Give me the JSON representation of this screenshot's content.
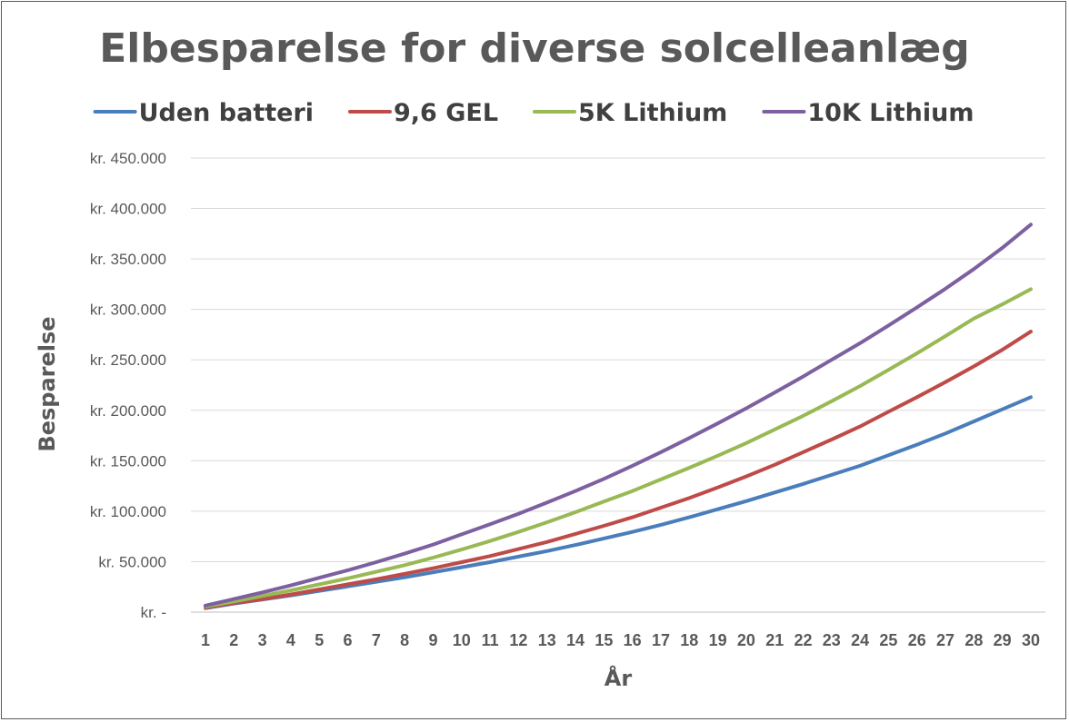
{
  "chart_data": {
    "type": "line",
    "title": "Elbesparelse for diverse solcelleanlæg",
    "xlabel": "År",
    "ylabel": "Besparelse",
    "x": [
      1,
      2,
      3,
      4,
      5,
      6,
      7,
      8,
      9,
      10,
      11,
      12,
      13,
      14,
      15,
      16,
      17,
      18,
      19,
      20,
      21,
      22,
      23,
      24,
      25,
      26,
      27,
      28,
      29,
      30
    ],
    "ylim": [
      0,
      450000
    ],
    "y_ticks": [
      0,
      50000,
      100000,
      150000,
      200000,
      250000,
      300000,
      350000,
      400000,
      450000
    ],
    "y_tick_labels": [
      "kr. -",
      "kr. 50.000",
      "kr. 100.000",
      "kr. 150.000",
      "kr. 200.000",
      "kr. 250.000",
      "kr. 300.000",
      "kr. 350.000",
      "kr. 400.000",
      "kr. 450.000"
    ],
    "grid": true,
    "legend_position": "top",
    "series": [
      {
        "name": "Uden batteri",
        "color": "#4a7ebb",
        "values": [
          4000,
          8500,
          12500,
          16500,
          21000,
          25500,
          30000,
          34500,
          39500,
          44500,
          49500,
          55000,
          60500,
          66500,
          73000,
          79500,
          86500,
          94000,
          102000,
          110000,
          118500,
          127000,
          136000,
          145000,
          155500,
          166000,
          177000,
          189000,
          201000,
          213000
        ]
      },
      {
        "name": "9,6 GEL",
        "color": "#be4b48",
        "values": [
          4500,
          9000,
          13000,
          17500,
          22500,
          27500,
          32500,
          38000,
          43500,
          49500,
          55500,
          62500,
          69500,
          77500,
          85500,
          94000,
          103500,
          113000,
          123500,
          134500,
          146000,
          158500,
          171000,
          184000,
          198500,
          213000,
          228000,
          243500,
          260000,
          278000
        ]
      },
      {
        "name": "5K Lithium",
        "color": "#98b954",
        "values": [
          5500,
          10500,
          16000,
          21500,
          27500,
          33500,
          40000,
          46500,
          54000,
          62000,
          70500,
          79500,
          89000,
          99000,
          109500,
          120000,
          131500,
          143000,
          155000,
          167500,
          181000,
          194500,
          209000,
          224000,
          240000,
          256500,
          273500,
          291000,
          305000,
          320000
        ]
      },
      {
        "name": "10K Lithium",
        "color": "#7d60a0",
        "values": [
          6500,
          13000,
          19500,
          26500,
          34000,
          41500,
          49500,
          58000,
          67000,
          77000,
          87000,
          97500,
          108500,
          120000,
          132000,
          145000,
          158500,
          172500,
          187000,
          202000,
          217500,
          233500,
          250000,
          266500,
          284000,
          302000,
          320500,
          340000,
          361000,
          384000
        ]
      }
    ]
  }
}
